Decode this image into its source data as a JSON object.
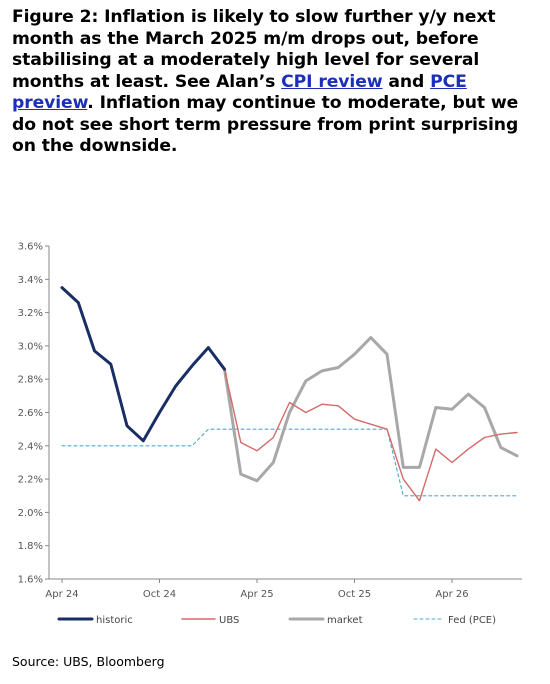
{
  "caption": {
    "part1": "Figure 2: Inflation is likely to slow further y/y next month as the March 2025 m/m drops out, before stabilising at a moderately high level for several months at least. See Alan’s ",
    "link1": "CPI review",
    "part2": " and ",
    "link2": "PCE preview",
    "part3": ". Inflation may continue to moderate, but we do not see short term pressure from print surprising on the downside."
  },
  "source": "Source: UBS, Bloomberg",
  "colors": {
    "historic": "#1a2e66",
    "UBS": "#d46a6a",
    "market": "#a8a8a8",
    "fed": "#4aa8d8",
    "link": "#1c2fb8"
  },
  "chart_data": {
    "type": "line",
    "x": [
      "Apr 24",
      "May 24",
      "Jun 24",
      "Jul 24",
      "Aug 24",
      "Sep 24",
      "Oct 24",
      "Nov 24",
      "Dec 24",
      "Jan 25",
      "Feb 25",
      "Mar 25",
      "Apr 25",
      "May 25",
      "Jun 25",
      "Jul 25",
      "Aug 25",
      "Sep 25",
      "Oct 25",
      "Nov 25",
      "Dec 25",
      "Jan 26",
      "Feb 26",
      "Mar 26",
      "Apr 26",
      "May 26",
      "Jun 26",
      "Jul 26",
      "Aug 26"
    ],
    "x_tick_labels": [
      "Apr 24",
      "Oct 24",
      "Apr 25",
      "Oct 25",
      "Apr 26"
    ],
    "y_ticks": [
      "3.6%",
      "3.4%",
      "3.2%",
      "3.0%",
      "2.8%",
      "2.6%",
      "2.4%",
      "2.2%",
      "2.0%",
      "1.8%",
      "1.6%"
    ],
    "ylim": [
      1.6,
      3.6
    ],
    "y_unit": "%",
    "grid": false,
    "legend_position": "bottom",
    "series": [
      {
        "name": "historic",
        "key": "historic",
        "values": [
          3.35,
          3.26,
          2.97,
          2.89,
          2.52,
          2.43,
          2.6,
          2.76,
          2.88,
          2.99,
          2.86,
          null,
          null,
          null,
          null,
          null,
          null,
          null,
          null,
          null,
          null,
          null,
          null,
          null,
          null,
          null,
          null,
          null,
          null
        ]
      },
      {
        "name": "UBS",
        "key": "UBS",
        "values": [
          null,
          null,
          null,
          null,
          null,
          null,
          null,
          null,
          null,
          null,
          2.86,
          2.42,
          2.37,
          2.45,
          2.66,
          2.6,
          2.65,
          2.64,
          2.56,
          2.53,
          2.5,
          2.2,
          2.07,
          2.38,
          2.3,
          2.38,
          2.45,
          2.47,
          2.48
        ]
      },
      {
        "name": "market",
        "key": "market",
        "values": [
          null,
          null,
          null,
          null,
          null,
          null,
          null,
          null,
          null,
          null,
          2.86,
          2.23,
          2.19,
          2.3,
          2.6,
          2.79,
          2.85,
          2.87,
          2.95,
          3.05,
          2.95,
          2.27,
          2.27,
          2.63,
          2.62,
          2.71,
          2.63,
          2.39,
          2.34
        ]
      },
      {
        "name": "Fed (PCE)",
        "key": "fed",
        "values": [
          2.4,
          2.4,
          2.4,
          2.4,
          2.4,
          2.4,
          2.4,
          2.4,
          2.4,
          2.5,
          2.5,
          2.5,
          2.5,
          2.5,
          2.5,
          2.5,
          2.5,
          2.5,
          2.5,
          2.5,
          2.5,
          2.1,
          2.1,
          2.1,
          2.1,
          2.1,
          2.1,
          2.1,
          2.1
        ]
      }
    ]
  }
}
